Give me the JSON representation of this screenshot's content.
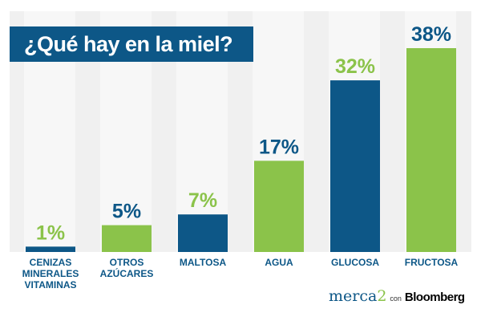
{
  "chart_data": {
    "type": "bar",
    "title": "¿Qué hay en la miel?",
    "categories": [
      [
        "CENIZAS",
        "MINERALES",
        "VITAMINAS"
      ],
      [
        "OTROS",
        "AZÚCARES"
      ],
      [
        "MALTOSA"
      ],
      [
        "AGUA"
      ],
      [
        "GLUCOSA"
      ],
      [
        "FRUCTOSA"
      ]
    ],
    "values": [
      1,
      5,
      7,
      17,
      32,
      38
    ],
    "value_labels": [
      "1%",
      "5%",
      "7%",
      "17%",
      "32%",
      "38%"
    ],
    "unit": "%",
    "ylim": [
      0,
      38
    ],
    "grid": false,
    "xlabel": "",
    "ylabel": ""
  },
  "colors": {
    "blue": "#0d5787",
    "green": "#8bc34a"
  },
  "logo": {
    "brand": "merca",
    "brand_digit": "2",
    "con": "con",
    "partner": "Bloomberg"
  }
}
